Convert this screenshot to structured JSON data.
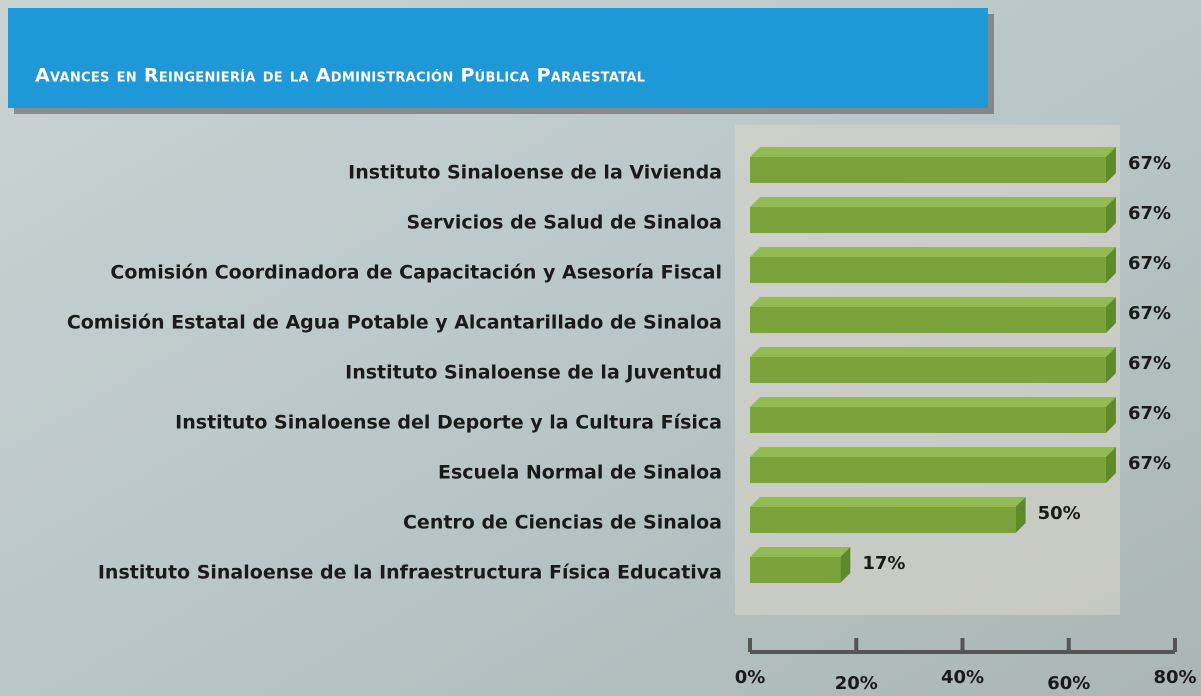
{
  "chart_data": {
    "type": "bar",
    "orientation": "horizontal",
    "title": "Avances en Reingeniería de la Administración Pública Paraestatal",
    "categories": [
      "Instituto Sinaloense de la Vivienda",
      "Servicios de Salud de Sinaloa",
      "Comisión Coordinadora de Capacitación y Asesoría Fiscal",
      "Comisión Estatal de Agua Potable y Alcantarillado de Sinaloa",
      "Instituto Sinaloense de la Juventud",
      "Instituto Sinaloense del Deporte y la Cultura Física",
      "Escuela Normal de Sinaloa",
      "Centro de Ciencias de Sinaloa",
      "Instituto Sinaloense de la Infraestructura Física Educativa"
    ],
    "values": [
      67,
      67,
      67,
      67,
      67,
      67,
      67,
      50,
      17
    ],
    "value_labels": [
      "67%",
      "67%",
      "67%",
      "67%",
      "67%",
      "67%",
      "67%",
      "50%",
      "17%"
    ],
    "color": "#7aa33c",
    "xlim": [
      0,
      80
    ],
    "xticks": [
      {
        "value": 0,
        "label": "0%"
      },
      {
        "value": 20,
        "label": "20%"
      },
      {
        "value": 40,
        "label": "40%"
      },
      {
        "value": 60,
        "label": "60%"
      },
      {
        "value": 80,
        "label": "80%"
      }
    ]
  }
}
